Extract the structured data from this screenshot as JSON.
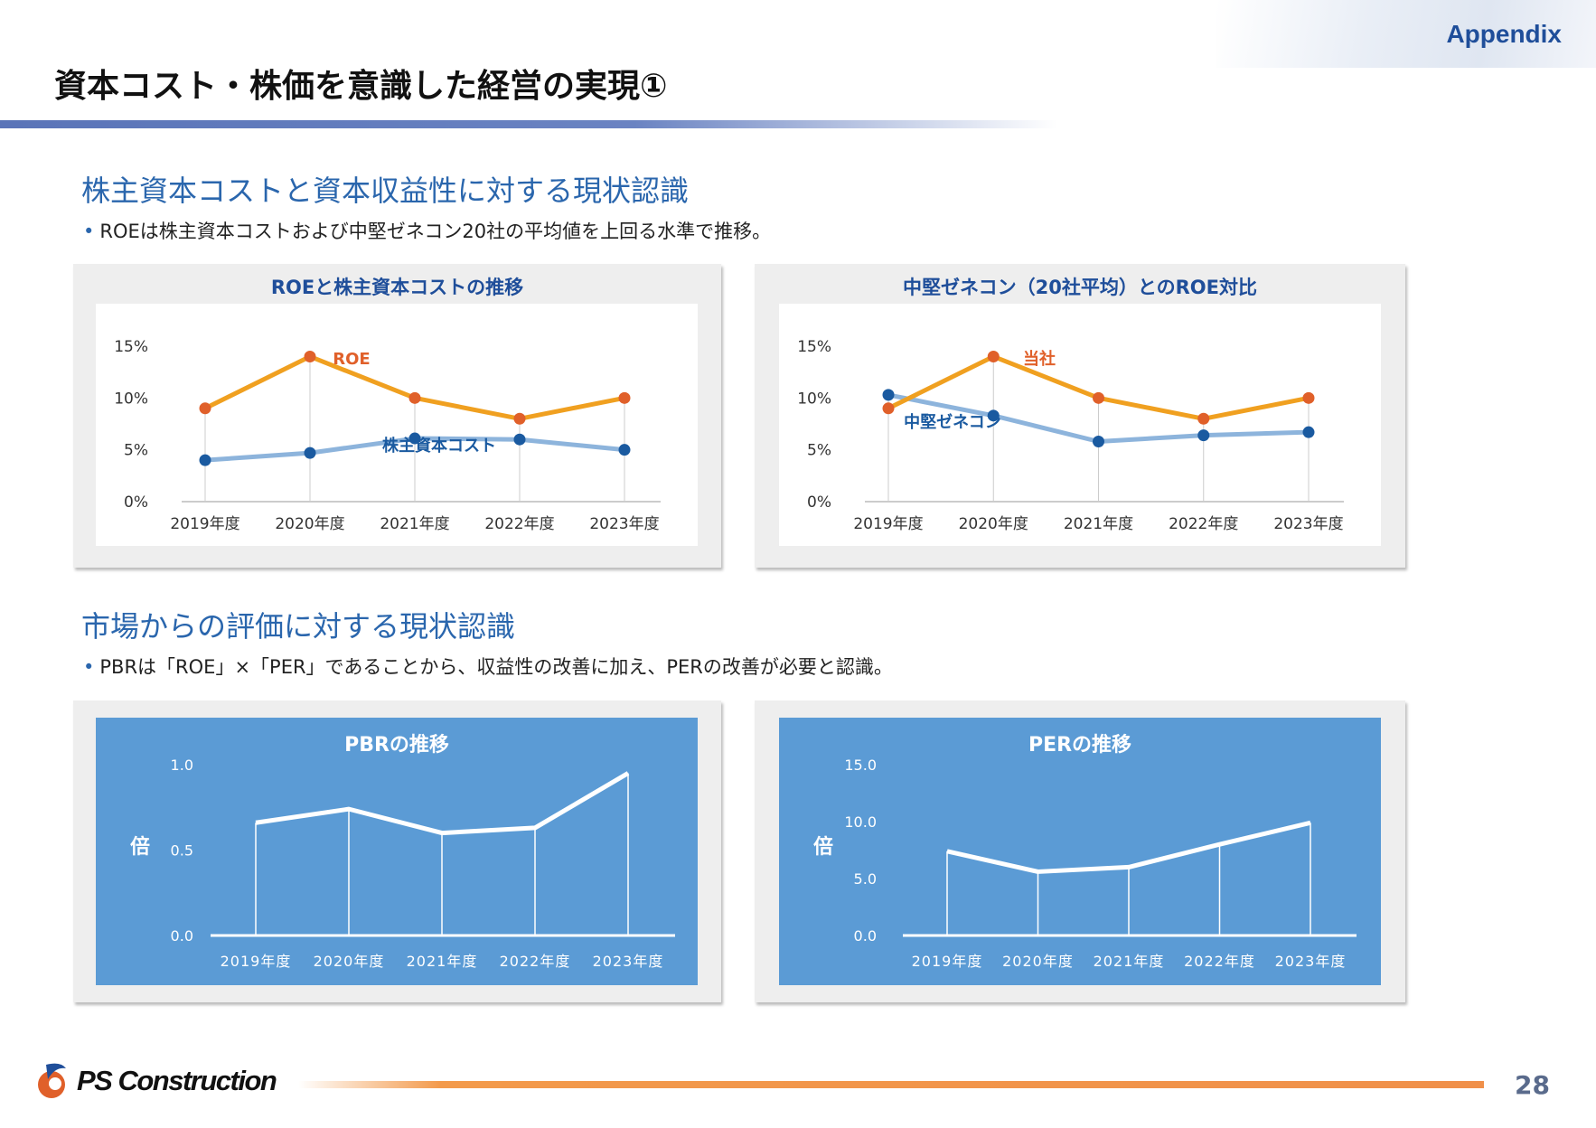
{
  "header": {
    "tag": "Appendix",
    "title": "資本コスト・株価を意識した経営の実現①"
  },
  "section1": {
    "heading": "株主資本コストと資本収益性に対する現状認識",
    "bullet": "ROEは株主資本コストおよび中堅ゼネコン20社の平均値を上回る水準で推移。"
  },
  "section2": {
    "heading": "市場からの評価に対する現状認識",
    "bullet": "PBRは「ROE」×「PER」であることから、収益性の改善に加え、PERの改善が必要と認識。"
  },
  "footer": {
    "company": "PS Construction",
    "page": "28"
  },
  "colors": {
    "accent": "#1f4e9a",
    "orange_line": "#f0a020",
    "orange_marker": "#e0602a",
    "blue_line": "#8db4dc",
    "blue_marker": "#1a5aa0",
    "panel_blue": "#5b9bd5"
  },
  "chart_data": [
    {
      "type": "line",
      "title": "ROEと株主資本コストの推移",
      "categories": [
        "2019年度",
        "2020年度",
        "2021年度",
        "2022年度",
        "2023年度"
      ],
      "ylim": [
        0,
        15
      ],
      "yticks": [
        "0%",
        "5%",
        "10%",
        "15%"
      ],
      "ytick_values": [
        0,
        5,
        10,
        15
      ],
      "series": [
        {
          "name": "ROE",
          "values": [
            9.0,
            14.0,
            10.0,
            8.0,
            10.0
          ]
        },
        {
          "name": "株主資本コスト",
          "values": [
            4.0,
            4.7,
            6.1,
            6.0,
            5.0
          ]
        }
      ]
    },
    {
      "type": "line",
      "title": "中堅ゼネコン（20社平均）とのROE対比",
      "categories": [
        "2019年度",
        "2020年度",
        "2021年度",
        "2022年度",
        "2023年度"
      ],
      "ylim": [
        0,
        15
      ],
      "yticks": [
        "0%",
        "5%",
        "10%",
        "15%"
      ],
      "ytick_values": [
        0,
        5,
        10,
        15
      ],
      "series": [
        {
          "name": "当社",
          "values": [
            9.0,
            14.0,
            10.0,
            8.0,
            10.0
          ]
        },
        {
          "name": "中堅ゼネコン",
          "values": [
            10.3,
            8.3,
            5.8,
            6.4,
            6.7
          ]
        }
      ]
    },
    {
      "type": "line",
      "title": "PBRの推移",
      "ylabel": "倍",
      "categories": [
        "2019年度",
        "2020年度",
        "2021年度",
        "2022年度",
        "2023年度"
      ],
      "ylim": [
        0,
        1.0
      ],
      "yticks": [
        "0.0",
        "0.5",
        "1.0"
      ],
      "ytick_values": [
        0,
        0.5,
        1.0
      ],
      "series": [
        {
          "values": [
            0.66,
            0.74,
            0.6,
            0.63,
            0.95
          ]
        }
      ]
    },
    {
      "type": "line",
      "title": "PERの推移",
      "ylabel": "倍",
      "categories": [
        "2019年度",
        "2020年度",
        "2021年度",
        "2022年度",
        "2023年度"
      ],
      "ylim": [
        0,
        15
      ],
      "yticks": [
        "0.0",
        "5.0",
        "10.0",
        "15.0"
      ],
      "ytick_values": [
        0,
        5,
        10,
        15
      ],
      "series": [
        {
          "values": [
            7.4,
            5.6,
            6.0,
            8.0,
            9.9
          ]
        }
      ]
    }
  ]
}
